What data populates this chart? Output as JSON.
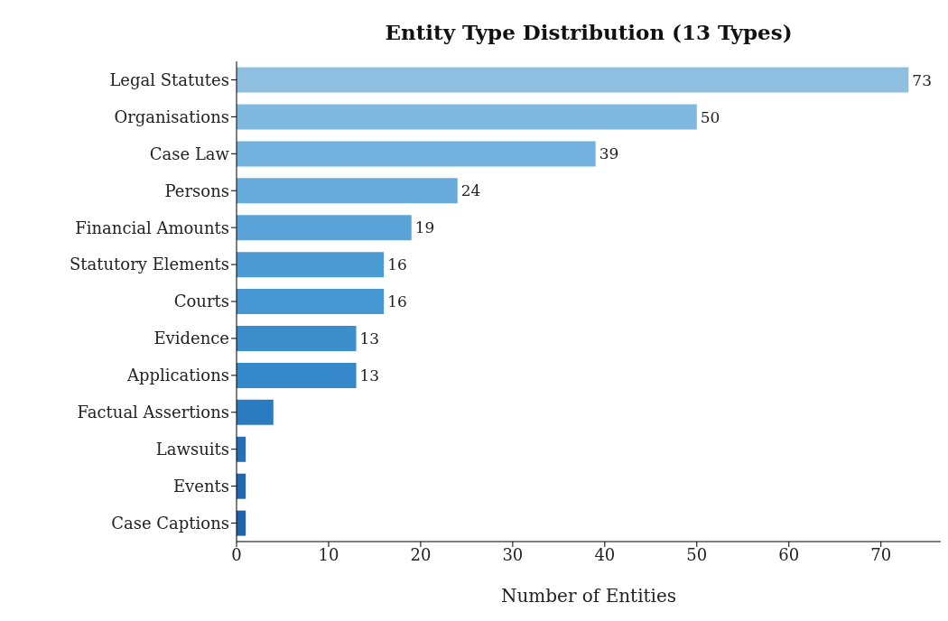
{
  "chart_data": {
    "type": "bar",
    "orientation": "horizontal",
    "title": "Entity Type Distribution (13 Types)",
    "xlabel": "Number of Entities",
    "categories": [
      "Legal Statutes",
      "Organisations",
      "Case Law",
      "Persons",
      "Financial Amounts",
      "Statutory Elements",
      "Courts",
      "Evidence",
      "Applications",
      "Factual Assertions",
      "Lawsuits",
      "Events",
      "Case Captions"
    ],
    "values": [
      73,
      50,
      39,
      24,
      19,
      16,
      16,
      13,
      13,
      4,
      1,
      1,
      1
    ],
    "value_labels": [
      "73",
      "50",
      "39",
      "24",
      "19",
      "16",
      "16",
      "13",
      "13",
      null,
      null,
      null,
      null
    ],
    "colors": [
      "#8ebfe0",
      "#80b9df",
      "#72b1dd",
      "#66abdb",
      "#5aa3d8",
      "#4d9bd4",
      "#4596d1",
      "#3b8dcc",
      "#3487c8",
      "#2b7bc0",
      "#2470b8",
      "#2068b2",
      "#1d62ad"
    ],
    "xlim": [
      0,
      76.5
    ],
    "xticks": [
      0,
      10,
      20,
      30,
      40,
      50,
      60,
      70
    ]
  }
}
